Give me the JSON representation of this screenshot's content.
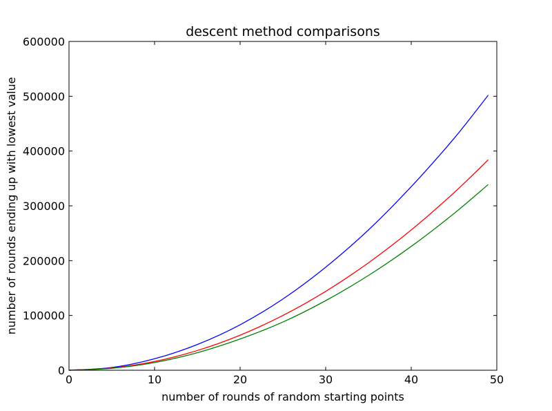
{
  "chart_data": {
    "type": "line",
    "title": "descent method comparisons",
    "xlabel": "number of rounds of random starting points",
    "ylabel": "number of rounds ending up with lowest value",
    "xlim": [
      0,
      50
    ],
    "ylim": [
      0,
      600000
    ],
    "xticks": [
      0,
      10,
      20,
      30,
      40,
      50
    ],
    "yticks": [
      0,
      100000,
      200000,
      300000,
      400000,
      500000,
      600000
    ],
    "grid": false,
    "legend": "none",
    "series": [
      {
        "color": "#0000ff",
        "x": [
          0,
          5,
          10,
          15,
          20,
          25,
          30,
          35,
          40,
          45,
          49
        ],
        "y": [
          0,
          5000,
          21000,
          47000,
          83000,
          130000,
          188000,
          256000,
          335000,
          423000,
          502000
        ]
      },
      {
        "color": "#ff0000",
        "x": [
          0,
          5,
          10,
          15,
          20,
          25,
          30,
          35,
          40,
          45,
          49
        ],
        "y": [
          0,
          4000,
          16000,
          36000,
          64000,
          100000,
          144000,
          196000,
          256000,
          324000,
          384000
        ]
      },
      {
        "color": "#008000",
        "x": [
          0,
          5,
          10,
          15,
          20,
          25,
          30,
          35,
          40,
          45,
          49
        ],
        "y": [
          0,
          3500,
          14000,
          32000,
          57000,
          88000,
          127000,
          173000,
          226000,
          286000,
          339000
        ]
      }
    ]
  }
}
